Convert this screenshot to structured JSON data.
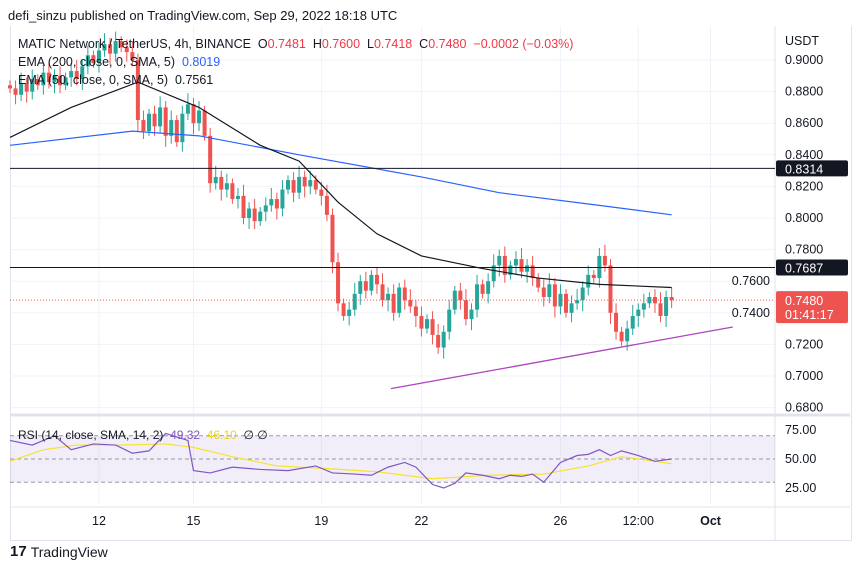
{
  "publisher": "defi_sinzu published on TradingView.com, Sep 29, 2022 18:18 UTC",
  "legend": {
    "symbol": "MATIC Network / TetherUS, 4h, BINANCE",
    "o_label": "O",
    "o": "0.7481",
    "h_label": "H",
    "h": "0.7600",
    "l_label": "L",
    "l": "0.7418",
    "c_label": "C",
    "c": "0.7480",
    "change": "−0.0002 (−0.03%)",
    "ema200": "EMA (200, close, 0, SMA, 5)",
    "ema200_val": "0.8019",
    "ema50": "EMA (50, close, 0, SMA, 5)",
    "ema50_val": "0.7561",
    "rsi": "RSI (14, close, SMA, 14, 2)",
    "rsi_val": "49.32",
    "rsi_ma_val": "46.10",
    "rsi_na": "∅ ∅"
  },
  "brand": "TradingView",
  "colors": {
    "up": "#26a69a",
    "down": "#ef5350",
    "ema200": "#2962ff",
    "ema50": "#131722",
    "trend": "#ab47bc",
    "rsi": "#7e57c2",
    "rsi_ma": "#f5e32a"
  },
  "chart_data": {
    "type": "candlestick",
    "currency": "USDT",
    "ylim": [
      0.68,
      0.9
    ],
    "yticks": [
      "0.9000",
      "0.8800",
      "0.8600",
      "0.8400",
      "0.8200",
      "0.8000",
      "0.7800",
      "0.7600",
      "0.7400",
      "0.7200",
      "0.7000",
      "0.6800"
    ],
    "xticks": [
      {
        "label": "12",
        "i": 16
      },
      {
        "label": "15",
        "i": 33
      },
      {
        "label": "19",
        "i": 56
      },
      {
        "label": "22",
        "i": 74
      },
      {
        "label": "26",
        "i": 99
      },
      {
        "label": "12:00",
        "i": 113
      },
      {
        "label": "Oct",
        "i": 126
      }
    ],
    "closes": [
      0.882,
      0.878,
      0.885,
      0.88,
      0.888,
      0.884,
      0.892,
      0.886,
      0.89,
      0.884,
      0.889,
      0.893,
      0.888,
      0.896,
      0.903,
      0.898,
      0.906,
      0.91,
      0.904,
      0.912,
      0.908,
      0.905,
      0.9,
      0.862,
      0.855,
      0.866,
      0.858,
      0.87,
      0.852,
      0.862,
      0.848,
      0.866,
      0.872,
      0.86,
      0.868,
      0.852,
      0.822,
      0.826,
      0.818,
      0.822,
      0.812,
      0.814,
      0.8,
      0.806,
      0.798,
      0.804,
      0.808,
      0.812,
      0.806,
      0.818,
      0.824,
      0.816,
      0.826,
      0.82,
      0.824,
      0.818,
      0.814,
      0.802,
      0.772,
      0.746,
      0.738,
      0.742,
      0.752,
      0.76,
      0.754,
      0.764,
      0.758,
      0.748,
      0.752,
      0.74,
      0.756,
      0.748,
      0.744,
      0.738,
      0.73,
      0.736,
      0.726,
      0.718,
      0.728,
      0.742,
      0.754,
      0.748,
      0.736,
      0.742,
      0.758,
      0.752,
      0.76,
      0.77,
      0.776,
      0.764,
      0.77,
      0.774,
      0.766,
      0.77,
      0.762,
      0.756,
      0.75,
      0.758,
      0.744,
      0.752,
      0.74,
      0.746,
      0.748,
      0.756,
      0.764,
      0.762,
      0.776,
      0.77,
      0.74,
      0.728,
      0.722,
      0.73,
      0.738,
      0.742,
      0.746,
      0.75,
      0.746,
      0.738,
      0.75,
      0.748
    ],
    "ema200": [
      [
        0,
        0.846
      ],
      [
        22,
        0.855
      ],
      [
        34,
        0.852
      ],
      [
        52,
        0.84
      ],
      [
        74,
        0.826
      ],
      [
        88,
        0.816
      ],
      [
        106,
        0.808
      ],
      [
        119,
        0.802
      ]
    ],
    "ema50": [
      [
        0,
        0.851
      ],
      [
        11,
        0.87
      ],
      [
        23,
        0.886
      ],
      [
        34,
        0.87
      ],
      [
        45,
        0.846
      ],
      [
        52,
        0.836
      ],
      [
        59,
        0.81
      ],
      [
        66,
        0.79
      ],
      [
        74,
        0.776
      ],
      [
        85,
        0.768
      ],
      [
        95,
        0.762
      ],
      [
        106,
        0.758
      ],
      [
        119,
        0.756
      ]
    ],
    "hlines": [
      {
        "value": 0.8314,
        "label": "0.8314"
      },
      {
        "value": 0.7687,
        "label": "0.7687"
      }
    ],
    "last_price": {
      "label": "0.7480",
      "value": 0.748,
      "countdown": "01:41:17"
    },
    "trendline": [
      [
        68.5,
        0.692
      ],
      [
        130,
        0.731
      ]
    ],
    "rsi": {
      "yticks": [
        "75.00",
        "50.00",
        "25.00"
      ],
      "values": [
        [
          0,
          66
        ],
        [
          4,
          62
        ],
        [
          8,
          70
        ],
        [
          11,
          58
        ],
        [
          15,
          63
        ],
        [
          19,
          62
        ],
        [
          22,
          55
        ],
        [
          25,
          57
        ],
        [
          28,
          72
        ],
        [
          32,
          66
        ],
        [
          33,
          40
        ],
        [
          36,
          38
        ],
        [
          40,
          43
        ],
        [
          45,
          41
        ],
        [
          50,
          40
        ],
        [
          55,
          44
        ],
        [
          58,
          38
        ],
        [
          62,
          37
        ],
        [
          65,
          36
        ],
        [
          68,
          43
        ],
        [
          71,
          47
        ],
        [
          73,
          43
        ],
        [
          76,
          28
        ],
        [
          78,
          25
        ],
        [
          80,
          29
        ],
        [
          82,
          38
        ],
        [
          85,
          36
        ],
        [
          88,
          33
        ],
        [
          90,
          36
        ],
        [
          92,
          35
        ],
        [
          94,
          37
        ],
        [
          96,
          30
        ],
        [
          99,
          47
        ],
        [
          102,
          53
        ],
        [
          104,
          54
        ],
        [
          106,
          58
        ],
        [
          108,
          53
        ],
        [
          110,
          57
        ],
        [
          113,
          53
        ],
        [
          116,
          48
        ],
        [
          119,
          50
        ]
      ],
      "ma": [
        [
          0,
          48
        ],
        [
          6,
          58
        ],
        [
          12,
          62
        ],
        [
          20,
          62
        ],
        [
          28,
          63
        ],
        [
          33,
          60
        ],
        [
          40,
          52
        ],
        [
          48,
          44
        ],
        [
          56,
          42
        ],
        [
          66,
          39
        ],
        [
          76,
          33
        ],
        [
          86,
          36
        ],
        [
          96,
          37
        ],
        [
          104,
          44
        ],
        [
          110,
          52
        ],
        [
          116,
          48
        ],
        [
          119,
          46
        ]
      ]
    }
  }
}
